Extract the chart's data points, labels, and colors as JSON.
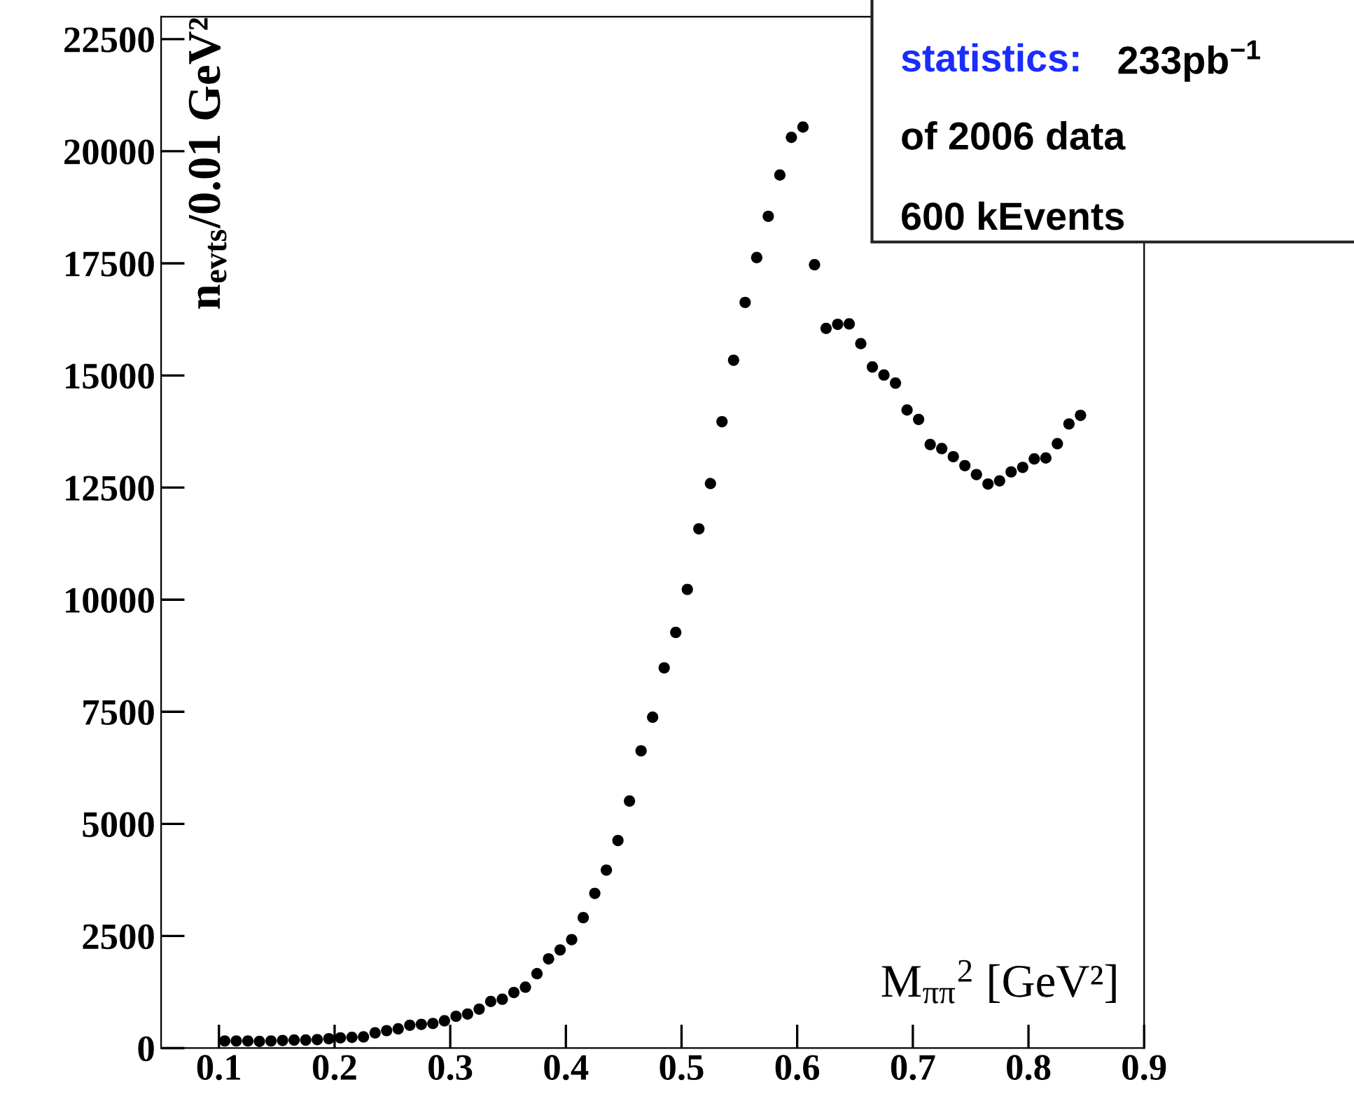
{
  "chart_data": {
    "type": "scatter",
    "xlabel": "M$_{ππ}$$^{2}$ [GeV²]",
    "ylabel": "n$_{evts}$/0.01 GeV²",
    "annotations": [
      "statistics:",
      "233pb$^{−1}$",
      "of 2006 data",
      "600 kEvents"
    ],
    "x": [
      0.105,
      0.115,
      0.125,
      0.135,
      0.145,
      0.155,
      0.165,
      0.175,
      0.185,
      0.195,
      0.205,
      0.215,
      0.225,
      0.235,
      0.245,
      0.255,
      0.265,
      0.275,
      0.285,
      0.295,
      0.305,
      0.315,
      0.325,
      0.335,
      0.345,
      0.355,
      0.365,
      0.375,
      0.385,
      0.395,
      0.405,
      0.415,
      0.425,
      0.435,
      0.445,
      0.455,
      0.465,
      0.475,
      0.485,
      0.495,
      0.505,
      0.515,
      0.525,
      0.535,
      0.545,
      0.555,
      0.565,
      0.575,
      0.585,
      0.595,
      0.605,
      0.615,
      0.625,
      0.635,
      0.645,
      0.655,
      0.665,
      0.675,
      0.685,
      0.695,
      0.705,
      0.715,
      0.725,
      0.735,
      0.745,
      0.755,
      0.765,
      0.775,
      0.785,
      0.795,
      0.805,
      0.815,
      0.825,
      0.835,
      0.845
    ],
    "series": [
      {
        "color": "#000000",
        "values": [
          160,
          160,
          160,
          150,
          160,
          170,
          180,
          180,
          190,
          210,
          230,
          240,
          250,
          340,
          390,
          430,
          510,
          530,
          550,
          610,
          710,
          760,
          870,
          1040,
          1090,
          1240,
          1360,
          1660,
          1990,
          2190,
          2420,
          2910,
          3450,
          3970,
          4630,
          5510,
          6630,
          7380,
          8480,
          9270,
          10230,
          11580,
          12590,
          13970,
          15340,
          16630,
          17630,
          18550,
          19470,
          20310,
          20540,
          17470,
          16050,
          16140,
          16150,
          15710,
          15190,
          15010,
          14830,
          14230,
          14020,
          13460,
          13370,
          13190,
          12990,
          12790,
          12580,
          12650,
          12850,
          12950,
          13140,
          13160,
          13480,
          13920,
          14110
        ]
      }
    ],
    "marker": "circle",
    "xlim": [
      0.05,
      0.9
    ],
    "ylim": [
      0,
      23000
    ],
    "xticks": [
      0.1,
      0.2,
      0.3,
      0.4,
      0.5,
      0.6,
      0.7,
      0.8,
      0.9
    ],
    "yticks": [
      0,
      2500,
      5000,
      7500,
      10000,
      12500,
      15000,
      17500,
      20000,
      22500
    ],
    "grid": false,
    "legend": false
  }
}
